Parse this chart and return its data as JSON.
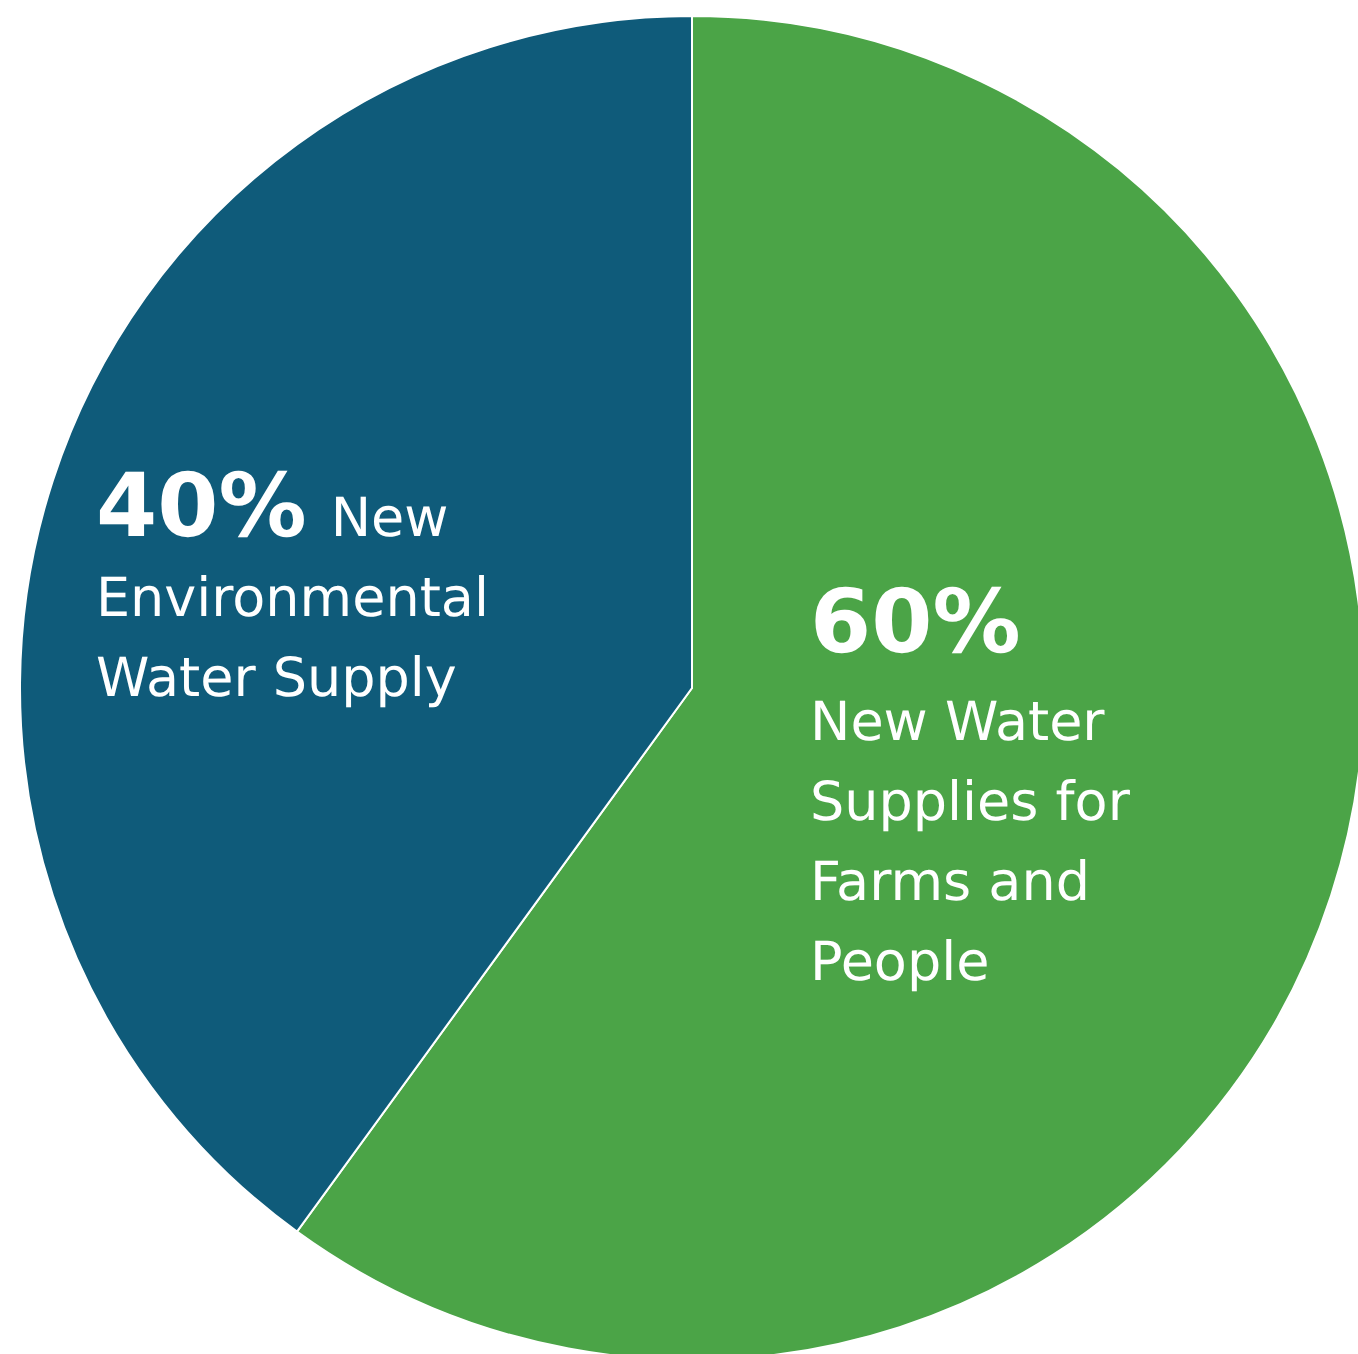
{
  "chart_data": {
    "type": "pie",
    "categories": [
      "New Water Supplies for Farms and People",
      "New Environmental Water Supply"
    ],
    "values": [
      60,
      40
    ],
    "colors": [
      "#4ba447",
      "#0f5b7a"
    ],
    "value_labels": [
      "60%",
      "40%"
    ]
  }
}
